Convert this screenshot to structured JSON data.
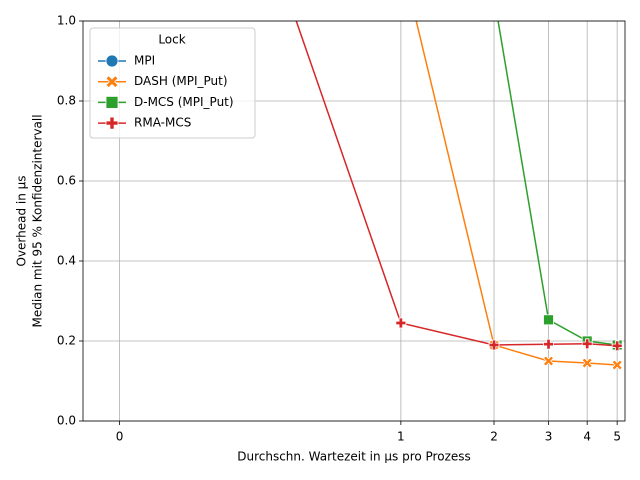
{
  "chart_data": {
    "type": "line",
    "xlabel": "Durchschn. Wartezeit in µs pro Prozess",
    "ylabel": [
      "Overhead in µs",
      "Median mit 95 % Konfidenzintervall"
    ],
    "legend_title": "Lock",
    "legend": "upper left",
    "grid": true,
    "xscale": "symlog",
    "xlim": [
      -0.13,
      5.3
    ],
    "xticks": [
      0,
      1,
      2,
      3,
      4,
      5
    ],
    "ylim": [
      0,
      1
    ],
    "yticks": [
      {
        "value": 0,
        "label": "0.0"
      },
      0.2,
      0.4,
      0.6,
      0.8,
      {
        "value": 1,
        "label": "1.0"
      }
    ],
    "series": [
      {
        "name": "MPI",
        "color": "#1f77b4",
        "marker": "circle",
        "x": [],
        "values": []
      },
      {
        "name": "DASH (MPI_Put)",
        "color": "#ff7f0e",
        "marker": "x",
        "x": [
          1,
          2,
          3,
          4,
          5
        ],
        "values": [
          1.16,
          0.19,
          0.15,
          0.145,
          0.14
        ]
      },
      {
        "name": "D-MCS (MPI_Put)",
        "color": "#2ca02c",
        "marker": "square",
        "x": [
          2,
          3,
          4,
          5
        ],
        "values": [
          1.06,
          0.253,
          0.2,
          0.19
        ]
      },
      {
        "name": "RMA-MCS",
        "color": "#d62728",
        "marker": "plus",
        "x": [
          0.5,
          1,
          2,
          3,
          4,
          5
        ],
        "values": [
          1.26,
          0.245,
          0.19,
          0.192,
          0.193,
          0.188
        ]
      }
    ]
  }
}
